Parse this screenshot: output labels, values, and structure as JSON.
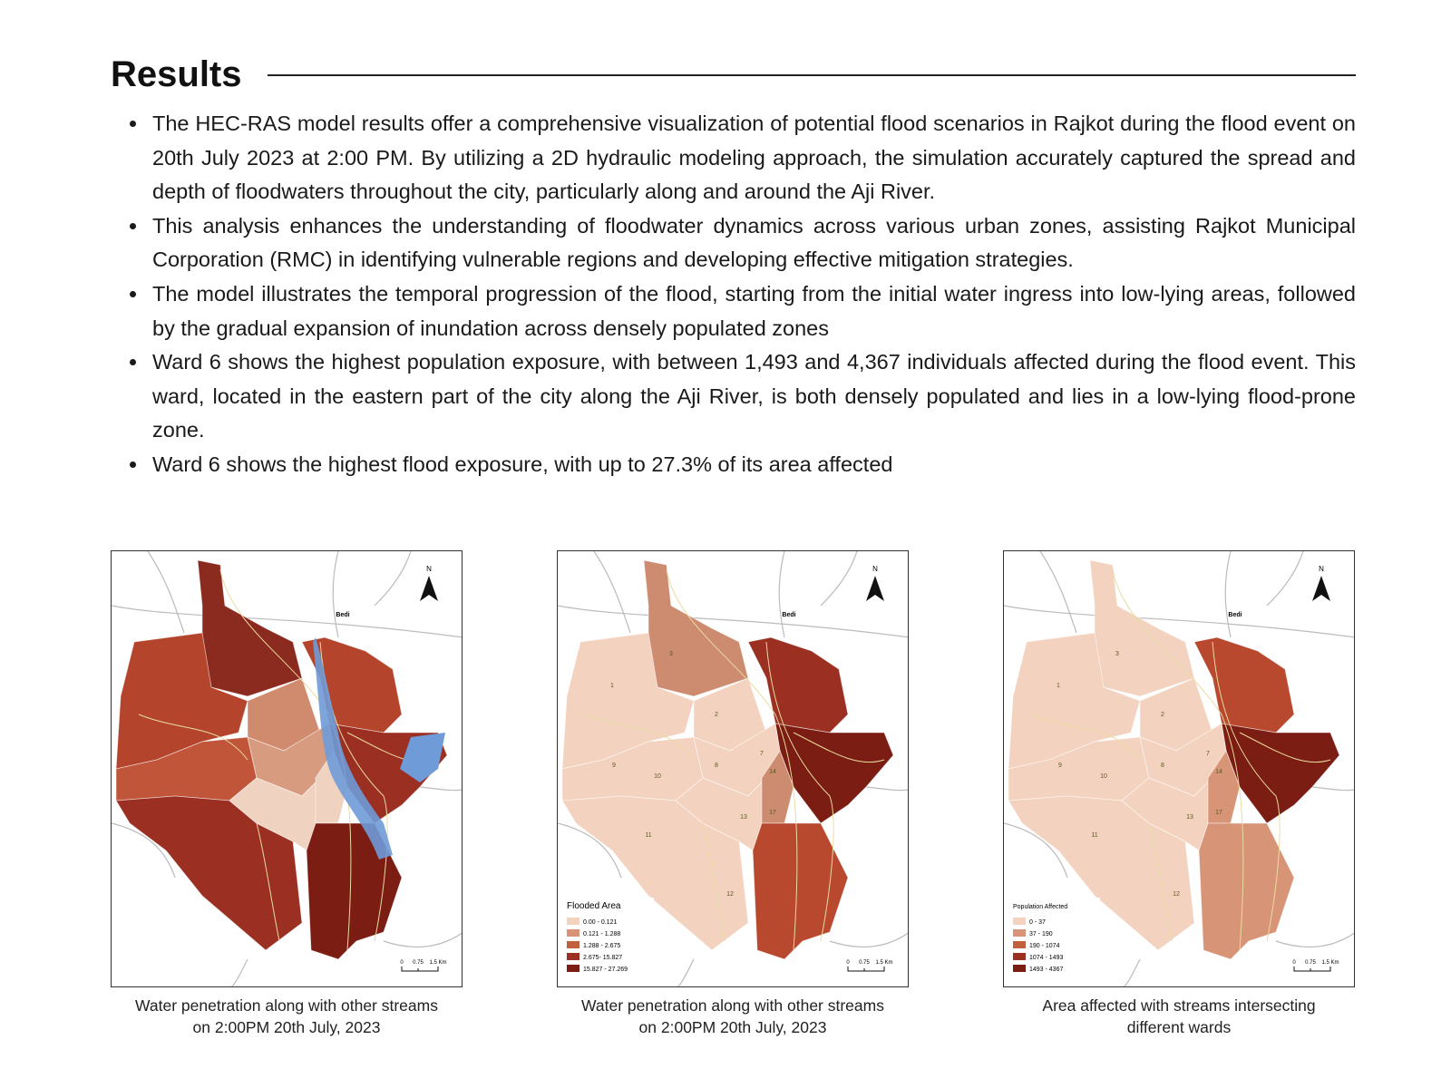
{
  "header": {
    "title": "Results"
  },
  "bullets": [
    "The HEC-RAS model results offer a comprehensive visualization of potential flood scenarios in Rajkot during the flood event on 20th July 2023 at 2:00 PM. By utilizing a 2D hydraulic modeling approach, the simulation accurately captured the spread and depth of floodwaters throughout the city, particularly along and around the Aji River.",
    "This analysis enhances the understanding of floodwater dynamics across various urban zones, assisting Rajkot Municipal Corporation (RMC) in identifying vulnerable regions and developing effective mitigation strategies.",
    "The model illustrates the temporal progression of the flood, starting from the initial water ingress into low-lying areas, followed by the gradual expansion of inundation across densely populated zones",
    "Ward 6 shows the highest population exposure, with between 1,493 and 4,367 individuals affected during the flood event. This ward, located in the eastern part of the city along the Aji River, is both densely populated and lies in a low-lying flood-prone zone.",
    "Ward 6 shows the highest flood exposure, with up to 27.3% of its area affected"
  ],
  "figures": [
    {
      "caption_lines": [
        "Water penetration along with other streams",
        "on 2:00PM 20th July, 2023"
      ],
      "north": "N",
      "place": "Bedi",
      "scale": [
        "0",
        "0.75",
        "1.5 Km"
      ]
    },
    {
      "caption_lines": [
        "Water penetration along with other streams",
        "on 2:00PM 20th July, 2023"
      ],
      "north": "N",
      "place": "Bedi",
      "scale": [
        "0",
        "0.75",
        "1.5 Km"
      ],
      "ward_labels": [
        "1",
        "2",
        "3",
        "7",
        "8",
        "9",
        "10",
        "11",
        "12",
        "13",
        "14",
        "17"
      ],
      "legend": {
        "title": "Flooded Area",
        "items": [
          "0.00 - 0.121",
          "0.121 - 1.288",
          "1.288 - 2.675",
          "2.675- 15.827",
          "15.827 - 27.269"
        ]
      }
    },
    {
      "caption_lines": [
        "Area affected with streams intersecting",
        "different wards"
      ],
      "north": "N",
      "place": "Bedi",
      "scale": [
        "0",
        "0.75",
        "1.5 Km"
      ],
      "ward_labels": [
        "1",
        "2",
        "3",
        "7",
        "8",
        "9",
        "10",
        "11",
        "12",
        "13",
        "14",
        "17"
      ],
      "legend": {
        "title": "Population Affected",
        "items": [
          "0 - 37",
          "37 - 190",
          "190 - 1074",
          "1074 - 1493",
          "1493 - 4367"
        ]
      }
    }
  ]
}
